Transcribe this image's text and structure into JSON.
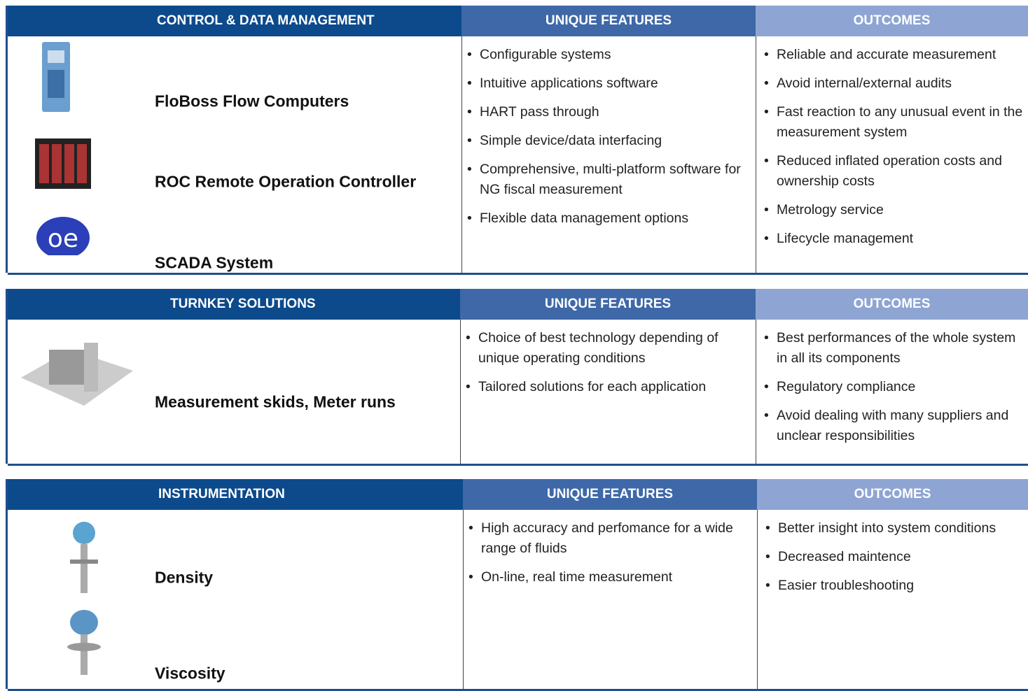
{
  "sections": [
    {
      "header": {
        "title": "CONTROL & DATA MANAGEMENT",
        "features": "UNIQUE FEATURES",
        "outcomes": "OUTCOMES"
      },
      "products": [
        "FloBoss Flow Computers",
        "ROC Remote Operation Controller",
        "SCADA System"
      ],
      "features": [
        "Configurable systems",
        "Intuitive applications software",
        "HART pass through",
        "Simple device/data interfacing",
        "Comprehensive, multi-platform software for NG fiscal measurement",
        "Flexible data management options"
      ],
      "outcomes": [
        "Reliable and accurate measurement",
        "Avoid internal/external audits",
        "Fast reaction to any unusual event in the measurement system",
        "Reduced inflated operation costs and ownership costs",
        "Metrology service",
        "Lifecycle management"
      ]
    },
    {
      "header": {
        "title": "TURNKEY SOLUTIONS",
        "features": "UNIQUE FEATURES",
        "outcomes": "OUTCOMES"
      },
      "products": [
        "Measurement skids, Meter runs"
      ],
      "features": [
        "Choice of best technology depending of unique operating conditions",
        "Tailored solutions for each application"
      ],
      "outcomes": [
        "Best performances of the whole system in all its components",
        "Regulatory compliance",
        "Avoid dealing with many suppliers and unclear responsibilities"
      ]
    },
    {
      "header": {
        "title": "INSTRUMENTATION",
        "features": "UNIQUE FEATURES",
        "outcomes": "OUTCOMES"
      },
      "products": [
        "Density",
        "Viscosity"
      ],
      "features": [
        "High accuracy and perfomance for a wide range of fluids",
        "On-line, real time measurement"
      ],
      "outcomes": [
        "Better insight into system conditions",
        "Decreased maintence",
        "Easier troubleshooting"
      ]
    }
  ]
}
